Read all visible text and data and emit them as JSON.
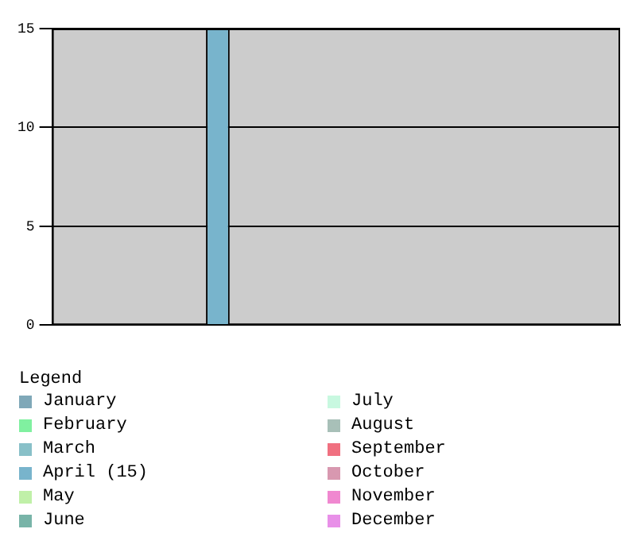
{
  "chart_data": {
    "type": "bar",
    "legend_title": "Legend",
    "legend": "bottom",
    "grid": "y",
    "categories": [
      null,
      null,
      null,
      null,
      null,
      null,
      null,
      null,
      null,
      null,
      null,
      null
    ],
    "ylim": [
      0,
      15
    ],
    "yticks": [
      0,
      5,
      10,
      15
    ],
    "series": [
      {
        "name": "January",
        "color": "#7fa8b8",
        "values": [
          0,
          null,
          null,
          null,
          null,
          null,
          null,
          null,
          null,
          null,
          null,
          null
        ]
      },
      {
        "name": "February",
        "color": "#80f0a0",
        "values": [
          null,
          0,
          null,
          null,
          null,
          null,
          null,
          null,
          null,
          null,
          null,
          null
        ]
      },
      {
        "name": "March",
        "color": "#88c0c8",
        "values": [
          null,
          null,
          0,
          null,
          null,
          null,
          null,
          null,
          null,
          null,
          null,
          null
        ]
      },
      {
        "name": "April (15)",
        "color": "#78b4cc",
        "values": [
          null,
          null,
          null,
          15,
          null,
          null,
          null,
          null,
          null,
          null,
          null,
          null
        ]
      },
      {
        "name": "May",
        "color": "#c0f0a8",
        "values": [
          null,
          null,
          null,
          null,
          0,
          null,
          null,
          null,
          null,
          null,
          null,
          null
        ]
      },
      {
        "name": "June",
        "color": "#78b4a8",
        "values": [
          null,
          null,
          null,
          null,
          null,
          0,
          null,
          null,
          null,
          null,
          null,
          null
        ]
      },
      {
        "name": "July",
        "color": "#c8f8e0",
        "values": [
          null,
          null,
          null,
          null,
          null,
          null,
          0,
          null,
          null,
          null,
          null,
          null
        ]
      },
      {
        "name": "August",
        "color": "#a8c0b8",
        "values": [
          null,
          null,
          null,
          null,
          null,
          null,
          null,
          0,
          null,
          null,
          null,
          null
        ]
      },
      {
        "name": "September",
        "color": "#f07080",
        "values": [
          null,
          null,
          null,
          null,
          null,
          null,
          null,
          null,
          0,
          null,
          null,
          null
        ]
      },
      {
        "name": "October",
        "color": "#d898b0",
        "values": [
          null,
          null,
          null,
          null,
          null,
          null,
          null,
          null,
          null,
          0,
          null,
          null
        ]
      },
      {
        "name": "November",
        "color": "#f088d0",
        "values": [
          null,
          null,
          null,
          null,
          null,
          null,
          null,
          null,
          null,
          null,
          0,
          null
        ]
      },
      {
        "name": "December",
        "color": "#e890e8",
        "values": [
          null,
          null,
          null,
          null,
          null,
          null,
          null,
          null,
          null,
          null,
          null,
          0
        ]
      }
    ]
  }
}
